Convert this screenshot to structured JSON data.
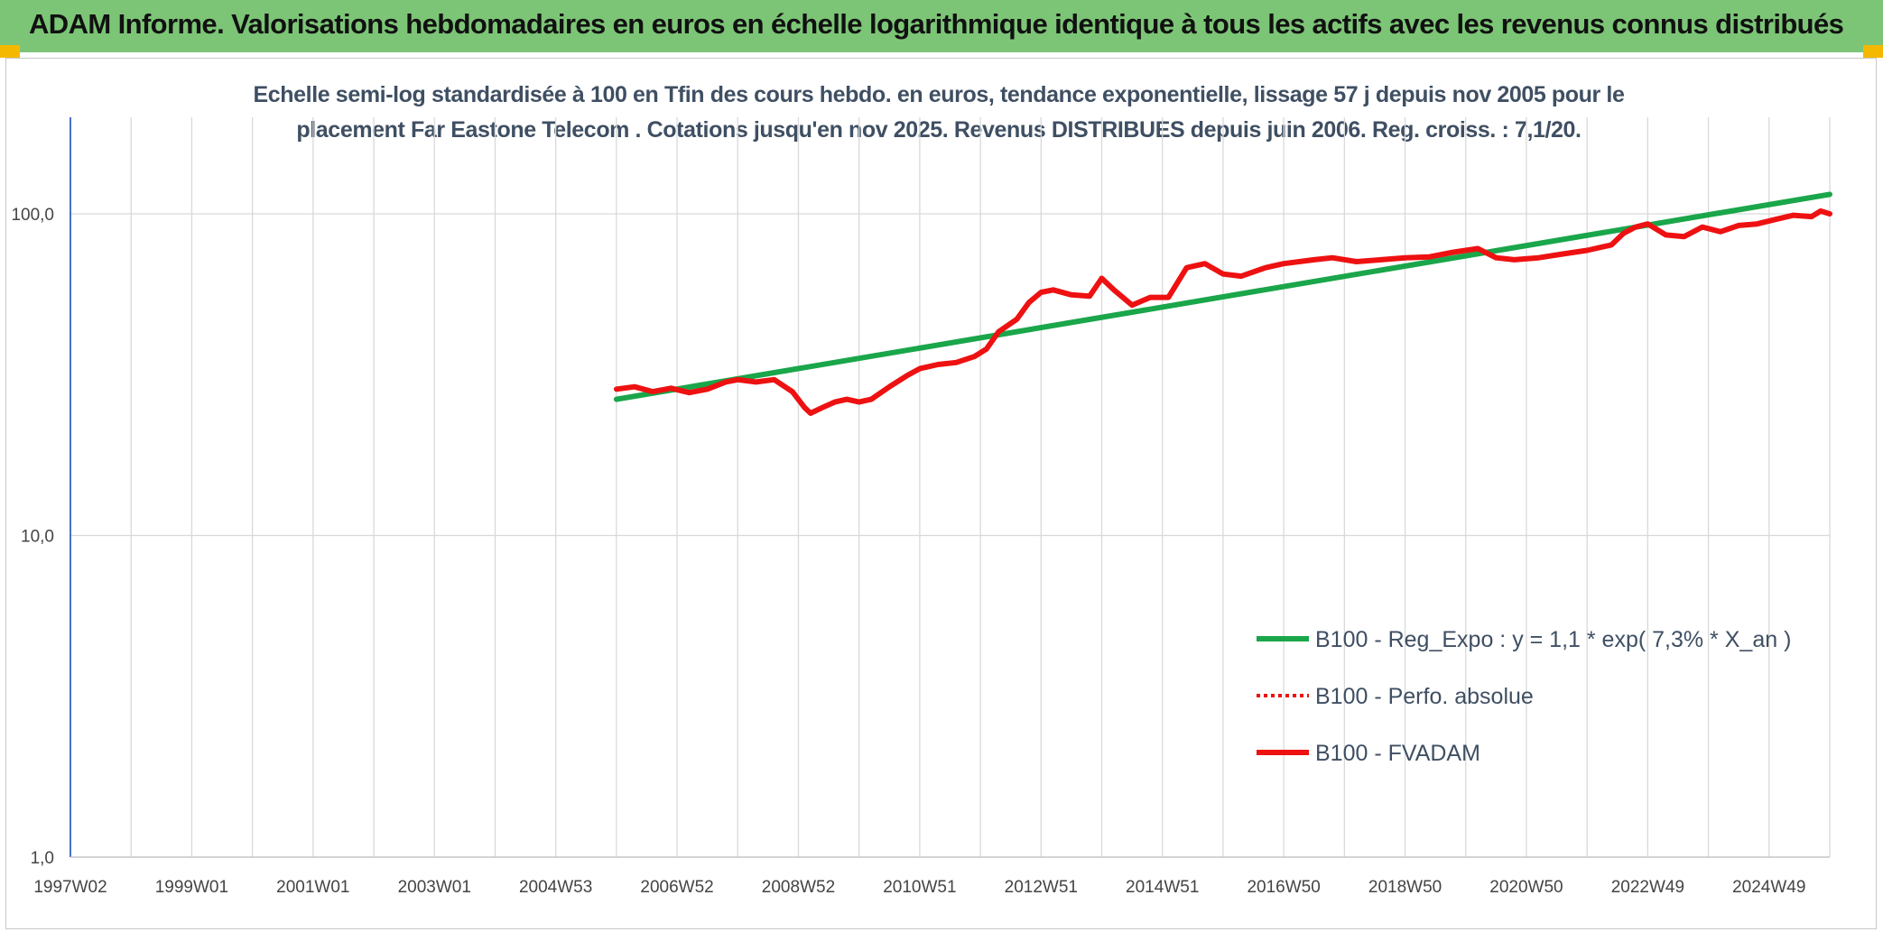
{
  "banner": {
    "title": "ADAM Informe. Valorisations hebdomadaires en euros en échelle logarithmique identique à tous les actifs avec les revenus connus distribués"
  },
  "colors": {
    "banner_bg": "#7cc576",
    "corner_accent": "#f5b800",
    "trend_line": "#1aa64a",
    "fvadam_line": "#ee1111",
    "grid": "#d9d9d9",
    "axis": "#4472c4"
  },
  "chart_data": {
    "type": "line",
    "title": "Echelle semi-log standardisée à 100 en Tfin des cours hebdo. en euros, tendance exponentielle, lissage 57 j depuis nov 2005 pour le placement Far Eastone Telecom . Cotations jusqu'en nov 2025. Revenus DISTRIBUES depuis juin 2006. Reg. croiss. : 7,1/20.",
    "title_lines": [
      "Echelle semi-log standardisée à 100 en Tfin des cours hebdo. en euros, tendance exponentielle, lissage 57 j depuis nov 2005 pour le",
      "placement Far Eastone Telecom . Cotations jusqu'en nov 2025. Revenus DISTRIBUES depuis juin 2006. Reg. croiss. : 7,1/20."
    ],
    "y_scale": "log",
    "ylim": [
      1,
      200
    ],
    "y_ticks": [
      "1,0",
      "10,0",
      "100,0"
    ],
    "y_tick_values": [
      1,
      10,
      100
    ],
    "x_tick_labels": [
      "1997W02",
      "1999W01",
      "2001W01",
      "2003W01",
      "2004W53",
      "2006W52",
      "2008W52",
      "2010W51",
      "2012W51",
      "2014W51",
      "2016W50",
      "2018W50",
      "2020W50",
      "2022W49",
      "2024W49"
    ],
    "x_tick_years": [
      1997.0,
      1999.0,
      2001.0,
      2003.0,
      2005.0,
      2007.0,
      2009.0,
      2011.0,
      2013.0,
      2015.0,
      2017.0,
      2019.0,
      2021.0,
      2023.0,
      2025.0
    ],
    "xlim": [
      1997.0,
      2026.0
    ],
    "grid": true,
    "legend_position": "lower-right",
    "series": [
      {
        "name": "B100 - Reg_Expo : y = 1,1 * exp( 7,3% *  X_an )",
        "style": "solid",
        "color": "#1aa64a",
        "points": [
          [
            2006.0,
            26.5
          ],
          [
            2026.0,
            115.0
          ]
        ]
      },
      {
        "name": "B100 - Perfo. absolue",
        "style": "dotted",
        "color": "#ee1111",
        "points": []
      },
      {
        "name": "B100 - FVADAM",
        "style": "solid",
        "color": "#ee1111",
        "points": [
          [
            2006.0,
            28.5
          ],
          [
            2006.3,
            29.0
          ],
          [
            2006.6,
            28.0
          ],
          [
            2006.9,
            28.7
          ],
          [
            2007.2,
            27.8
          ],
          [
            2007.5,
            28.5
          ],
          [
            2007.8,
            30.0
          ],
          [
            2008.0,
            30.5
          ],
          [
            2008.3,
            30.0
          ],
          [
            2008.6,
            30.5
          ],
          [
            2008.9,
            28.0
          ],
          [
            2009.1,
            25.0
          ],
          [
            2009.2,
            24.0
          ],
          [
            2009.4,
            25.0
          ],
          [
            2009.6,
            26.0
          ],
          [
            2009.8,
            26.5
          ],
          [
            2010.0,
            26.0
          ],
          [
            2010.2,
            26.5
          ],
          [
            2010.5,
            29.0
          ],
          [
            2010.8,
            31.5
          ],
          [
            2011.0,
            33.0
          ],
          [
            2011.3,
            34.0
          ],
          [
            2011.6,
            34.5
          ],
          [
            2011.9,
            36.0
          ],
          [
            2012.1,
            38.0
          ],
          [
            2012.3,
            43.0
          ],
          [
            2012.6,
            47.0
          ],
          [
            2012.8,
            53.0
          ],
          [
            2013.0,
            57.0
          ],
          [
            2013.2,
            58.0
          ],
          [
            2013.5,
            56.0
          ],
          [
            2013.8,
            55.5
          ],
          [
            2014.0,
            63.0
          ],
          [
            2014.2,
            58.0
          ],
          [
            2014.5,
            52.0
          ],
          [
            2014.8,
            55.0
          ],
          [
            2015.1,
            55.0
          ],
          [
            2015.4,
            68.0
          ],
          [
            2015.7,
            70.0
          ],
          [
            2016.0,
            65.0
          ],
          [
            2016.3,
            64.0
          ],
          [
            2016.7,
            68.0
          ],
          [
            2017.0,
            70.0
          ],
          [
            2017.5,
            72.0
          ],
          [
            2017.8,
            73.0
          ],
          [
            2018.2,
            71.0
          ],
          [
            2018.6,
            72.0
          ],
          [
            2019.0,
            73.0
          ],
          [
            2019.4,
            73.5
          ],
          [
            2019.8,
            76.0
          ],
          [
            2020.2,
            78.0
          ],
          [
            2020.5,
            73.0
          ],
          [
            2020.8,
            72.0
          ],
          [
            2021.2,
            73.0
          ],
          [
            2021.6,
            75.0
          ],
          [
            2022.0,
            77.0
          ],
          [
            2022.4,
            80.0
          ],
          [
            2022.6,
            87.0
          ],
          [
            2022.8,
            91.0
          ],
          [
            2023.0,
            93.0
          ],
          [
            2023.3,
            86.0
          ],
          [
            2023.6,
            85.0
          ],
          [
            2023.9,
            91.0
          ],
          [
            2024.2,
            88.0
          ],
          [
            2024.5,
            92.0
          ],
          [
            2024.8,
            93.0
          ],
          [
            2025.1,
            96.0
          ],
          [
            2025.4,
            99.0
          ],
          [
            2025.7,
            98.0
          ],
          [
            2025.85,
            102.0
          ],
          [
            2026.0,
            100.0
          ]
        ]
      }
    ]
  }
}
